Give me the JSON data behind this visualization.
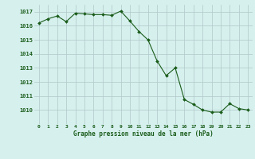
{
  "x": [
    0,
    1,
    2,
    3,
    4,
    5,
    6,
    7,
    8,
    9,
    10,
    11,
    12,
    13,
    14,
    15,
    16,
    17,
    18,
    19,
    20,
    21,
    22,
    23
  ],
  "y": [
    1016.2,
    1016.5,
    1016.7,
    1016.3,
    1016.9,
    1016.85,
    1016.8,
    1016.8,
    1016.75,
    1017.05,
    1016.35,
    1015.6,
    1015.0,
    1013.5,
    1012.45,
    1013.0,
    1010.75,
    1010.4,
    1010.0,
    1009.85,
    1009.85,
    1010.45,
    1010.1,
    1010.0
  ],
  "line_color": "#1a5c1a",
  "marker_color": "#1a5c1a",
  "bg_color": "#d6f0ee",
  "grid_color": "#b0c8c8",
  "xlabel": "Graphe pression niveau de la mer (hPa)",
  "xlabel_color": "#1a5c1a",
  "tick_label_color": "#1a5c1a",
  "ylim": [
    1009.0,
    1017.5
  ],
  "xlim": [
    -0.5,
    23.5
  ],
  "yticks": [
    1010,
    1011,
    1012,
    1013,
    1014,
    1015,
    1016,
    1017
  ],
  "xticks": [
    0,
    1,
    2,
    3,
    4,
    5,
    6,
    7,
    8,
    9,
    10,
    11,
    12,
    13,
    14,
    15,
    16,
    17,
    18,
    19,
    20,
    21,
    22,
    23
  ],
  "xtick_labels": [
    "0",
    "1",
    "2",
    "3",
    "4",
    "5",
    "6",
    "7",
    "8",
    "9",
    "10",
    "11",
    "12",
    "13",
    "14",
    "15",
    "16",
    "17",
    "18",
    "19",
    "20",
    "21",
    "22",
    "23"
  ]
}
